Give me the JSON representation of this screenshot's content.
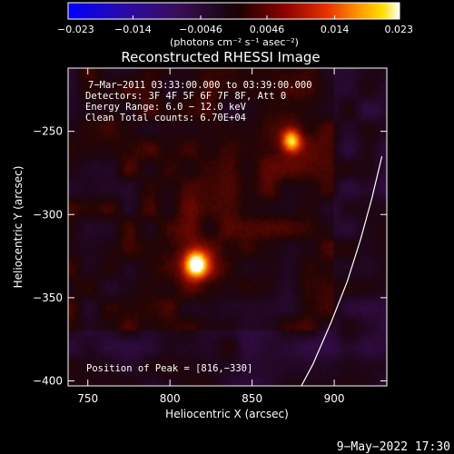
{
  "colorbar": {
    "ticks": [
      "−0.023",
      "−0.014",
      "−0.0046",
      "0.0046",
      "0.014",
      "0.023"
    ],
    "tick_values": [
      -0.023,
      -0.014,
      -0.0046,
      0.0046,
      0.014,
      0.023
    ],
    "range": [
      -0.023,
      0.023
    ],
    "unit_label": "(photons cm⁻² s⁻¹ asec⁻²)",
    "colormap": "blue-purple-red-orange-yellow-white"
  },
  "chart_data": {
    "type": "heatmap",
    "title": "Reconstructed RHESSI Image",
    "xlabel": "Heliocentric X (arcsec)",
    "ylabel": "Heliocentric Y (arcsec)",
    "xlim": [
      738,
      932
    ],
    "ylim": [
      -403,
      -212
    ],
    "x_ticks": [
      750,
      800,
      850,
      900
    ],
    "y_ticks": [
      -250,
      -300,
      -350,
      -400
    ],
    "x_tick_labels": [
      "750",
      "800",
      "850",
      "900"
    ],
    "y_tick_labels": [
      "−250",
      "−300",
      "−350",
      "−400"
    ],
    "sources": [
      {
        "x": 816,
        "y": -330,
        "peak": 0.023
      },
      {
        "x": 874,
        "y": -256,
        "peak": 0.017
      }
    ],
    "limb_curve": [
      [
        880,
        -403
      ],
      [
        887,
        -390
      ],
      [
        898,
        -365
      ],
      [
        908,
        -340
      ],
      [
        916,
        -315
      ],
      [
        923,
        -290
      ],
      [
        929,
        -265
      ]
    ],
    "annotations": [
      "7−Mar−2011 03:33:00.000 to 03:39:00.000",
      "Detectors: 3F 4F 5F 6F 7F 8F, Att 0",
      "Energy Range: 6.0 − 12.0 keV",
      "Clean    Total counts: 6.70E+04"
    ],
    "peak_label": "Position of Peak = [816,−330]"
  },
  "footer": {
    "date_stamp": "9−May−2022 17:30"
  },
  "colors": {
    "background": "#000000",
    "text": "#ffffff",
    "limb": "#ffffff"
  }
}
